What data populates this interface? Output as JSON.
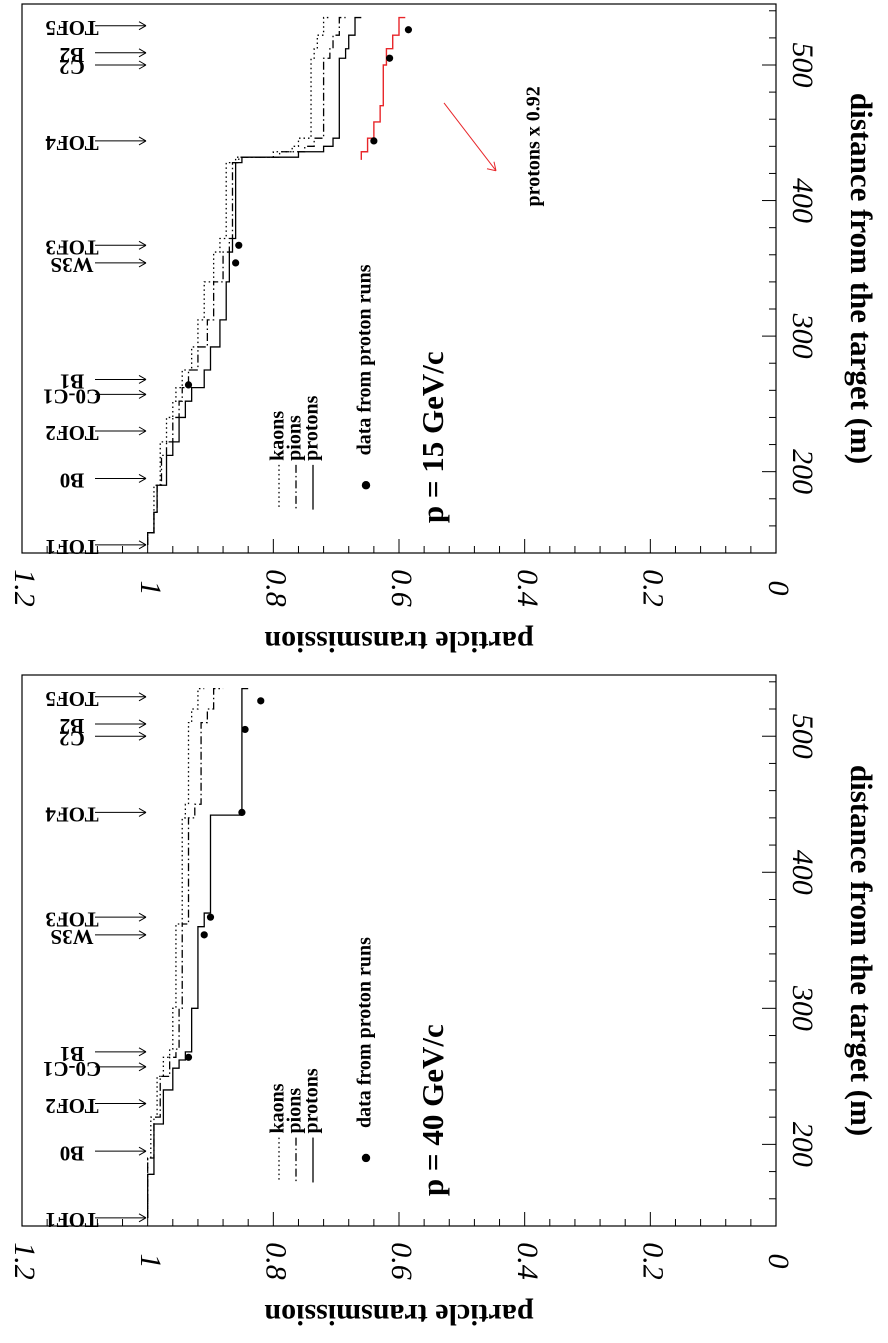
{
  "chart_data": [
    {
      "type": "line",
      "title": "p = 15 GeV/c",
      "xlabel": "distance from the target (m)",
      "ylabel": "particle transmission",
      "xlim": [
        140,
        545
      ],
      "ylim": [
        0,
        1.2
      ],
      "x_ticks": [
        "200",
        "300",
        "400",
        "500"
      ],
      "y_ticks": [
        "0",
        "0.2",
        "0.4",
        "0.6",
        "0.8",
        "1",
        "1.2"
      ],
      "legend_title": "data from proton runs",
      "grid": false,
      "legend_placement": "middle-left",
      "detectors": [
        {
          "name": "TOF1",
          "x": 146
        },
        {
          "name": "B0",
          "x": 195
        },
        {
          "name": "TOF2",
          "x": 230
        },
        {
          "name": "C0-C1",
          "x": 257
        },
        {
          "name": "B1",
          "x": 268
        },
        {
          "name": "W3S",
          "x": 354
        },
        {
          "name": "TOF3",
          "x": 367
        },
        {
          "name": "TOF4",
          "x": 444
        },
        {
          "name": "C2",
          "x": 500
        },
        {
          "name": "B2",
          "x": 509
        },
        {
          "name": "TOF5",
          "x": 529
        }
      ],
      "series": [
        {
          "name": "kaons",
          "style": "dotted",
          "x": [
            146,
            155,
            170,
            190,
            212,
            222,
            240,
            252,
            262,
            275,
            292,
            312,
            340,
            362,
            372,
            428,
            432,
            436,
            440,
            446,
            505,
            512,
            522,
            535
          ],
          "y": [
            1.0,
            0.99,
            0.99,
            0.98,
            0.98,
            0.97,
            0.96,
            0.955,
            0.945,
            0.93,
            0.92,
            0.91,
            0.895,
            0.885,
            0.875,
            0.86,
            0.8,
            0.77,
            0.76,
            0.74,
            0.735,
            0.73,
            0.72,
            0.71
          ]
        },
        {
          "name": "pions",
          "style": "dashdot",
          "x": [
            146,
            155,
            170,
            190,
            212,
            222,
            240,
            252,
            262,
            275,
            292,
            312,
            340,
            362,
            372,
            428,
            432,
            436,
            440,
            446,
            505,
            512,
            522,
            535
          ],
          "y": [
            1.0,
            0.99,
            0.985,
            0.978,
            0.97,
            0.96,
            0.95,
            0.945,
            0.935,
            0.92,
            0.905,
            0.895,
            0.88,
            0.87,
            0.865,
            0.855,
            0.79,
            0.75,
            0.735,
            0.72,
            0.71,
            0.705,
            0.695,
            0.685
          ]
        },
        {
          "name": "protons",
          "style": "solid",
          "x": [
            146,
            155,
            170,
            190,
            212,
            222,
            240,
            252,
            262,
            275,
            292,
            312,
            340,
            362,
            372,
            428,
            432,
            436,
            440,
            446,
            505,
            512,
            522,
            535
          ],
          "y": [
            1.0,
            0.99,
            0.985,
            0.97,
            0.96,
            0.95,
            0.94,
            0.93,
            0.91,
            0.9,
            0.885,
            0.875,
            0.87,
            0.865,
            0.86,
            0.85,
            0.76,
            0.72,
            0.705,
            0.695,
            0.685,
            0.68,
            0.67,
            0.66
          ]
        },
        {
          "name": "protons x 0.92",
          "style": "solid",
          "color": "#e8262a",
          "x": [
            430,
            436,
            446,
            458,
            470,
            500,
            512,
            522,
            535
          ],
          "y": [
            0.66,
            0.65,
            0.64,
            0.63,
            0.625,
            0.62,
            0.61,
            0.6,
            0.59
          ]
        },
        {
          "name": "data from proton runs",
          "style": "points",
          "x": [
            264,
            354,
            367,
            444,
            505,
            526
          ],
          "y": [
            0.935,
            0.86,
            0.855,
            0.64,
            0.615,
            0.585
          ]
        }
      ],
      "annotation": "protons x 0.92",
      "colors": {
        "highlight": "#e8262a",
        "ink": "#000000"
      }
    },
    {
      "type": "line",
      "title": "p = 40 GeV/c",
      "xlabel": "distance from the target (m)",
      "ylabel": "particle transmission",
      "xlim": [
        140,
        545
      ],
      "ylim": [
        0,
        1.2
      ],
      "x_ticks": [
        "200",
        "300",
        "400",
        "500"
      ],
      "y_ticks": [
        "0",
        "0.2",
        "0.4",
        "0.6",
        "0.8",
        "1",
        "1.2"
      ],
      "legend_title": "data from proton runs",
      "grid": false,
      "legend_placement": "middle-left",
      "detectors": [
        {
          "name": "TOF1",
          "x": 146
        },
        {
          "name": "B0",
          "x": 195
        },
        {
          "name": "TOF2",
          "x": 230
        },
        {
          "name": "C0-C1",
          "x": 257
        },
        {
          "name": "B1",
          "x": 268
        },
        {
          "name": "W3S",
          "x": 354
        },
        {
          "name": "TOF3",
          "x": 367
        },
        {
          "name": "TOF4",
          "x": 444
        },
        {
          "name": "C2",
          "x": 500
        },
        {
          "name": "B2",
          "x": 509
        },
        {
          "name": "TOF5",
          "x": 529
        }
      ],
      "series": [
        {
          "name": "kaons",
          "style": "dotted",
          "x": [
            146,
            190,
            220,
            250,
            264,
            270,
            300,
            362,
            440,
            450,
            510,
            520,
            535
          ],
          "y": [
            1.0,
            0.995,
            0.985,
            0.975,
            0.965,
            0.96,
            0.955,
            0.945,
            0.94,
            0.935,
            0.93,
            0.92,
            0.91
          ]
        },
        {
          "name": "pions",
          "style": "dashdot",
          "x": [
            146,
            190,
            220,
            250,
            264,
            270,
            300,
            362,
            440,
            450,
            510,
            520,
            535
          ],
          "y": [
            1.0,
            0.99,
            0.98,
            0.965,
            0.955,
            0.95,
            0.945,
            0.935,
            0.925,
            0.915,
            0.905,
            0.895,
            0.88
          ]
        },
        {
          "name": "protons",
          "style": "solid",
          "x": [
            146,
            178,
            215,
            240,
            256,
            262,
            268,
            300,
            360,
            370,
            440,
            442,
            530,
            535
          ],
          "y": [
            1.0,
            0.99,
            0.975,
            0.96,
            0.95,
            0.94,
            0.93,
            0.92,
            0.91,
            0.9,
            0.9,
            0.85,
            0.85,
            0.84
          ]
        },
        {
          "name": "data from proton runs",
          "style": "points",
          "x": [
            264,
            354,
            367,
            444,
            505,
            526
          ],
          "y": [
            0.935,
            0.91,
            0.9,
            0.85,
            0.845,
            0.82
          ]
        }
      ],
      "colors": {
        "ink": "#000000"
      }
    }
  ]
}
